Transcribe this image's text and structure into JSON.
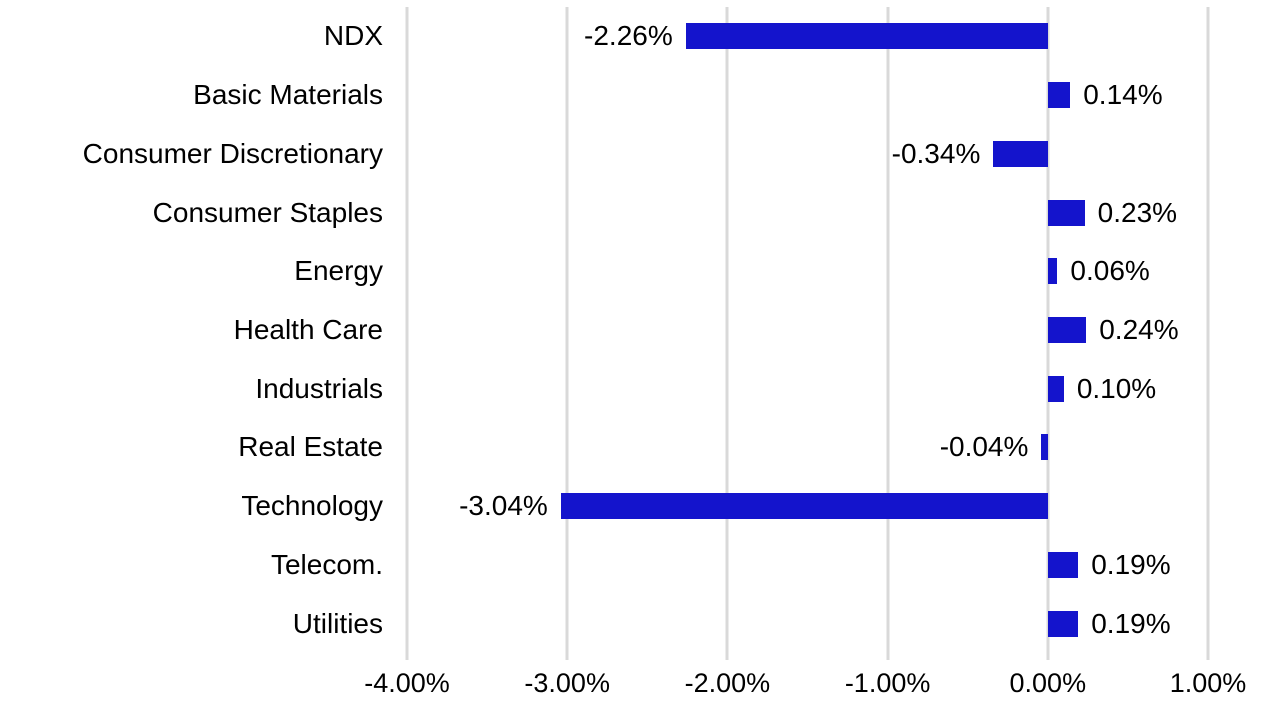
{
  "chart_data": {
    "type": "bar",
    "orientation": "horizontal",
    "categories": [
      "NDX",
      "Basic Materials",
      "Consumer Discretionary",
      "Consumer Staples",
      "Energy",
      "Health Care",
      "Industrials",
      "Real Estate",
      "Technology",
      "Telecom.",
      "Utilities"
    ],
    "values": [
      -2.26,
      0.14,
      -0.34,
      0.23,
      0.06,
      0.24,
      0.1,
      -0.04,
      -3.04,
      0.19,
      0.19
    ],
    "value_labels": [
      "-2.26%",
      "0.14%",
      "-0.34%",
      "0.23%",
      "0.06%",
      "0.24%",
      "0.10%",
      "-0.04%",
      "-3.04%",
      "0.19%",
      "0.19%"
    ],
    "xlabel": "",
    "ylabel": "",
    "xlim": [
      -4,
      1
    ],
    "x_ticks": [
      -4,
      -3,
      -2,
      -1,
      0,
      1
    ],
    "x_tick_labels": [
      "-4.00%",
      "-3.00%",
      "-2.00%",
      "-1.00%",
      "0.00%",
      "1.00%"
    ],
    "grid": "vertical",
    "legend": "none",
    "colors": {
      "bar": "#1414CC",
      "gridline": "#D9D9D9",
      "text": "#000000",
      "background": "#FFFFFF"
    }
  }
}
